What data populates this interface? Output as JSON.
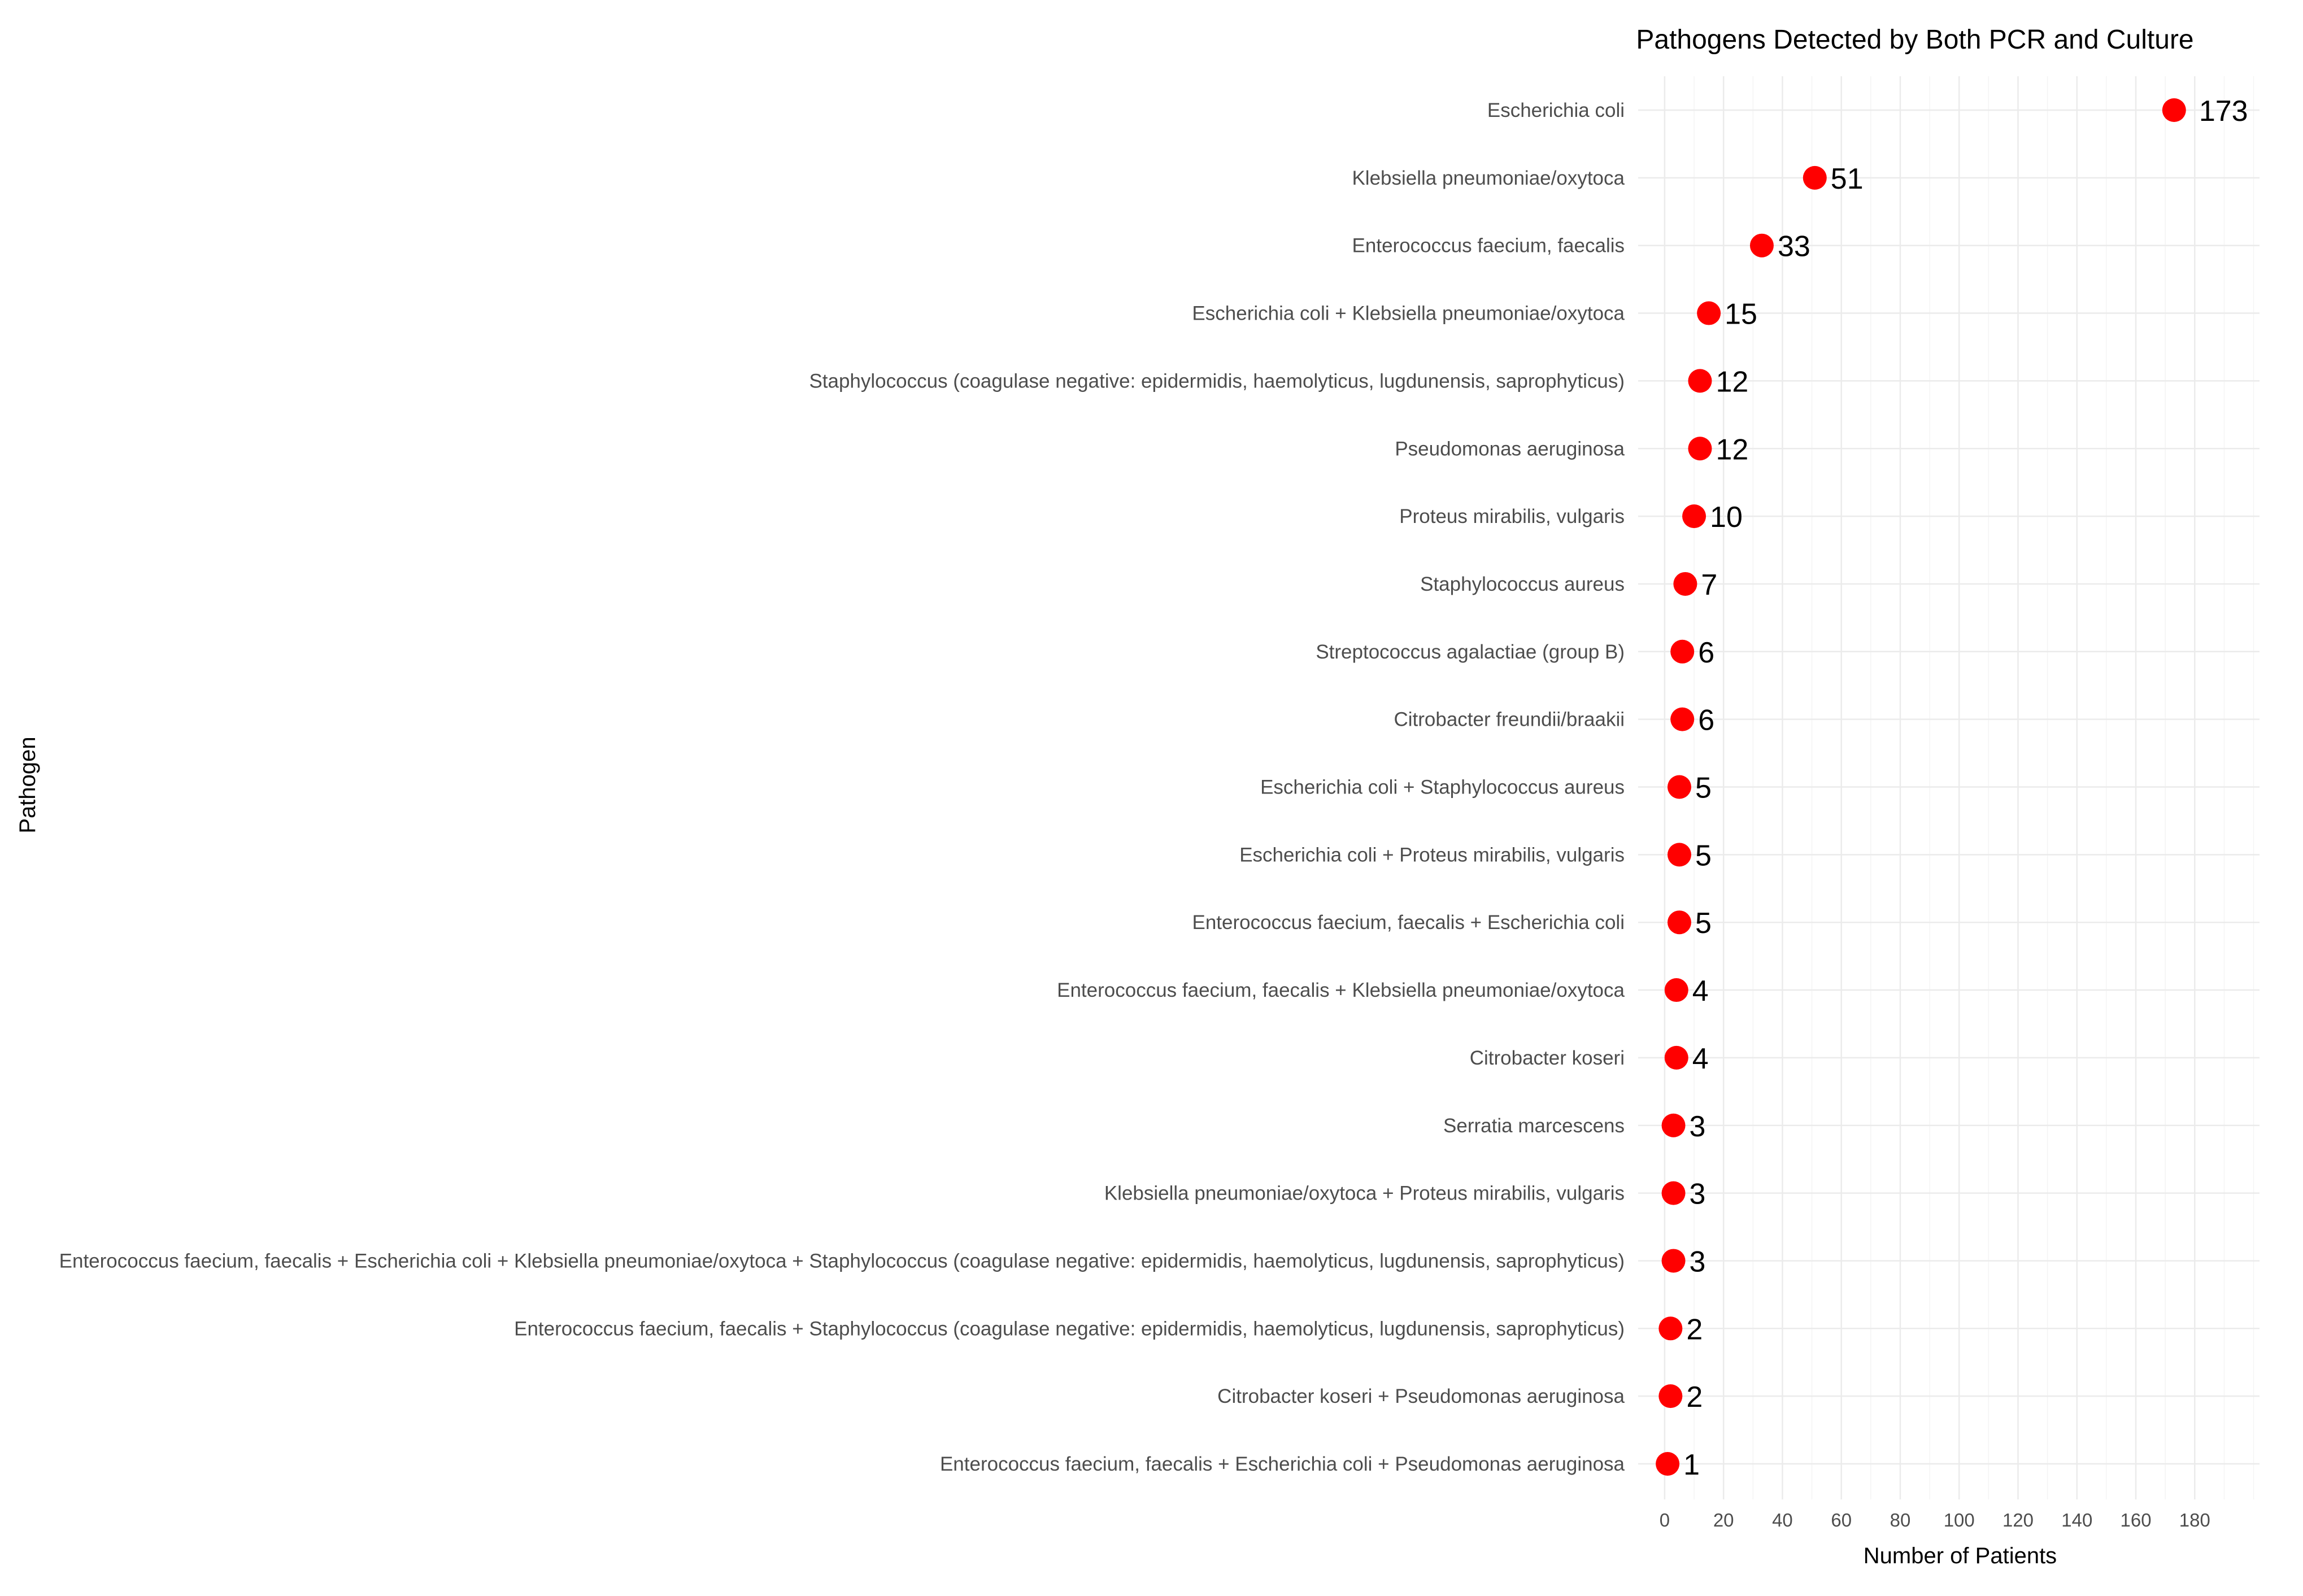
{
  "chart_data": {
    "type": "scatter",
    "title": "Pathogens Detected by Both PCR and Culture",
    "xlabel": "Number of Patients",
    "ylabel": "Pathogen",
    "xlim": [
      -9,
      202
    ],
    "x_ticks": [
      0,
      20,
      40,
      60,
      80,
      100,
      120,
      140,
      160,
      180
    ],
    "grid": true,
    "marker_color": "#ff0000",
    "categories": [
      "Escherichia coli",
      "Klebsiella pneumoniae/oxytoca",
      "Enterococcus faecium, faecalis",
      "Escherichia coli + Klebsiella pneumoniae/oxytoca",
      "Staphylococcus (coagulase negative: epidermidis, haemolyticus, lugdunensis, saprophyticus)",
      "Pseudomonas aeruginosa",
      "Proteus mirabilis, vulgaris",
      "Staphylococcus aureus",
      "Streptococcus agalactiae (group B)",
      "Citrobacter freundii/braakii",
      "Escherichia coli + Staphylococcus aureus",
      "Escherichia coli + Proteus mirabilis, vulgaris",
      "Enterococcus faecium, faecalis + Escherichia coli",
      "Enterococcus faecium, faecalis + Klebsiella pneumoniae/oxytoca",
      "Citrobacter koseri",
      "Serratia marcescens",
      "Klebsiella pneumoniae/oxytoca + Proteus mirabilis, vulgaris",
      "Enterococcus faecium, faecalis + Escherichia coli + Klebsiella pneumoniae/oxytoca + Staphylococcus (coagulase negative: epidermidis, haemolyticus, lugdunensis, saprophyticus)",
      "Enterococcus faecium, faecalis + Staphylococcus (coagulase negative: epidermidis, haemolyticus, lugdunensis, saprophyticus)",
      "Citrobacter koseri + Pseudomonas aeruginosa",
      "Enterococcus faecium, faecalis + Escherichia coli + Pseudomonas aeruginosa"
    ],
    "values": [
      173,
      51,
      33,
      15,
      12,
      12,
      10,
      7,
      6,
      6,
      5,
      5,
      5,
      4,
      4,
      3,
      3,
      3,
      2,
      2,
      1
    ]
  }
}
